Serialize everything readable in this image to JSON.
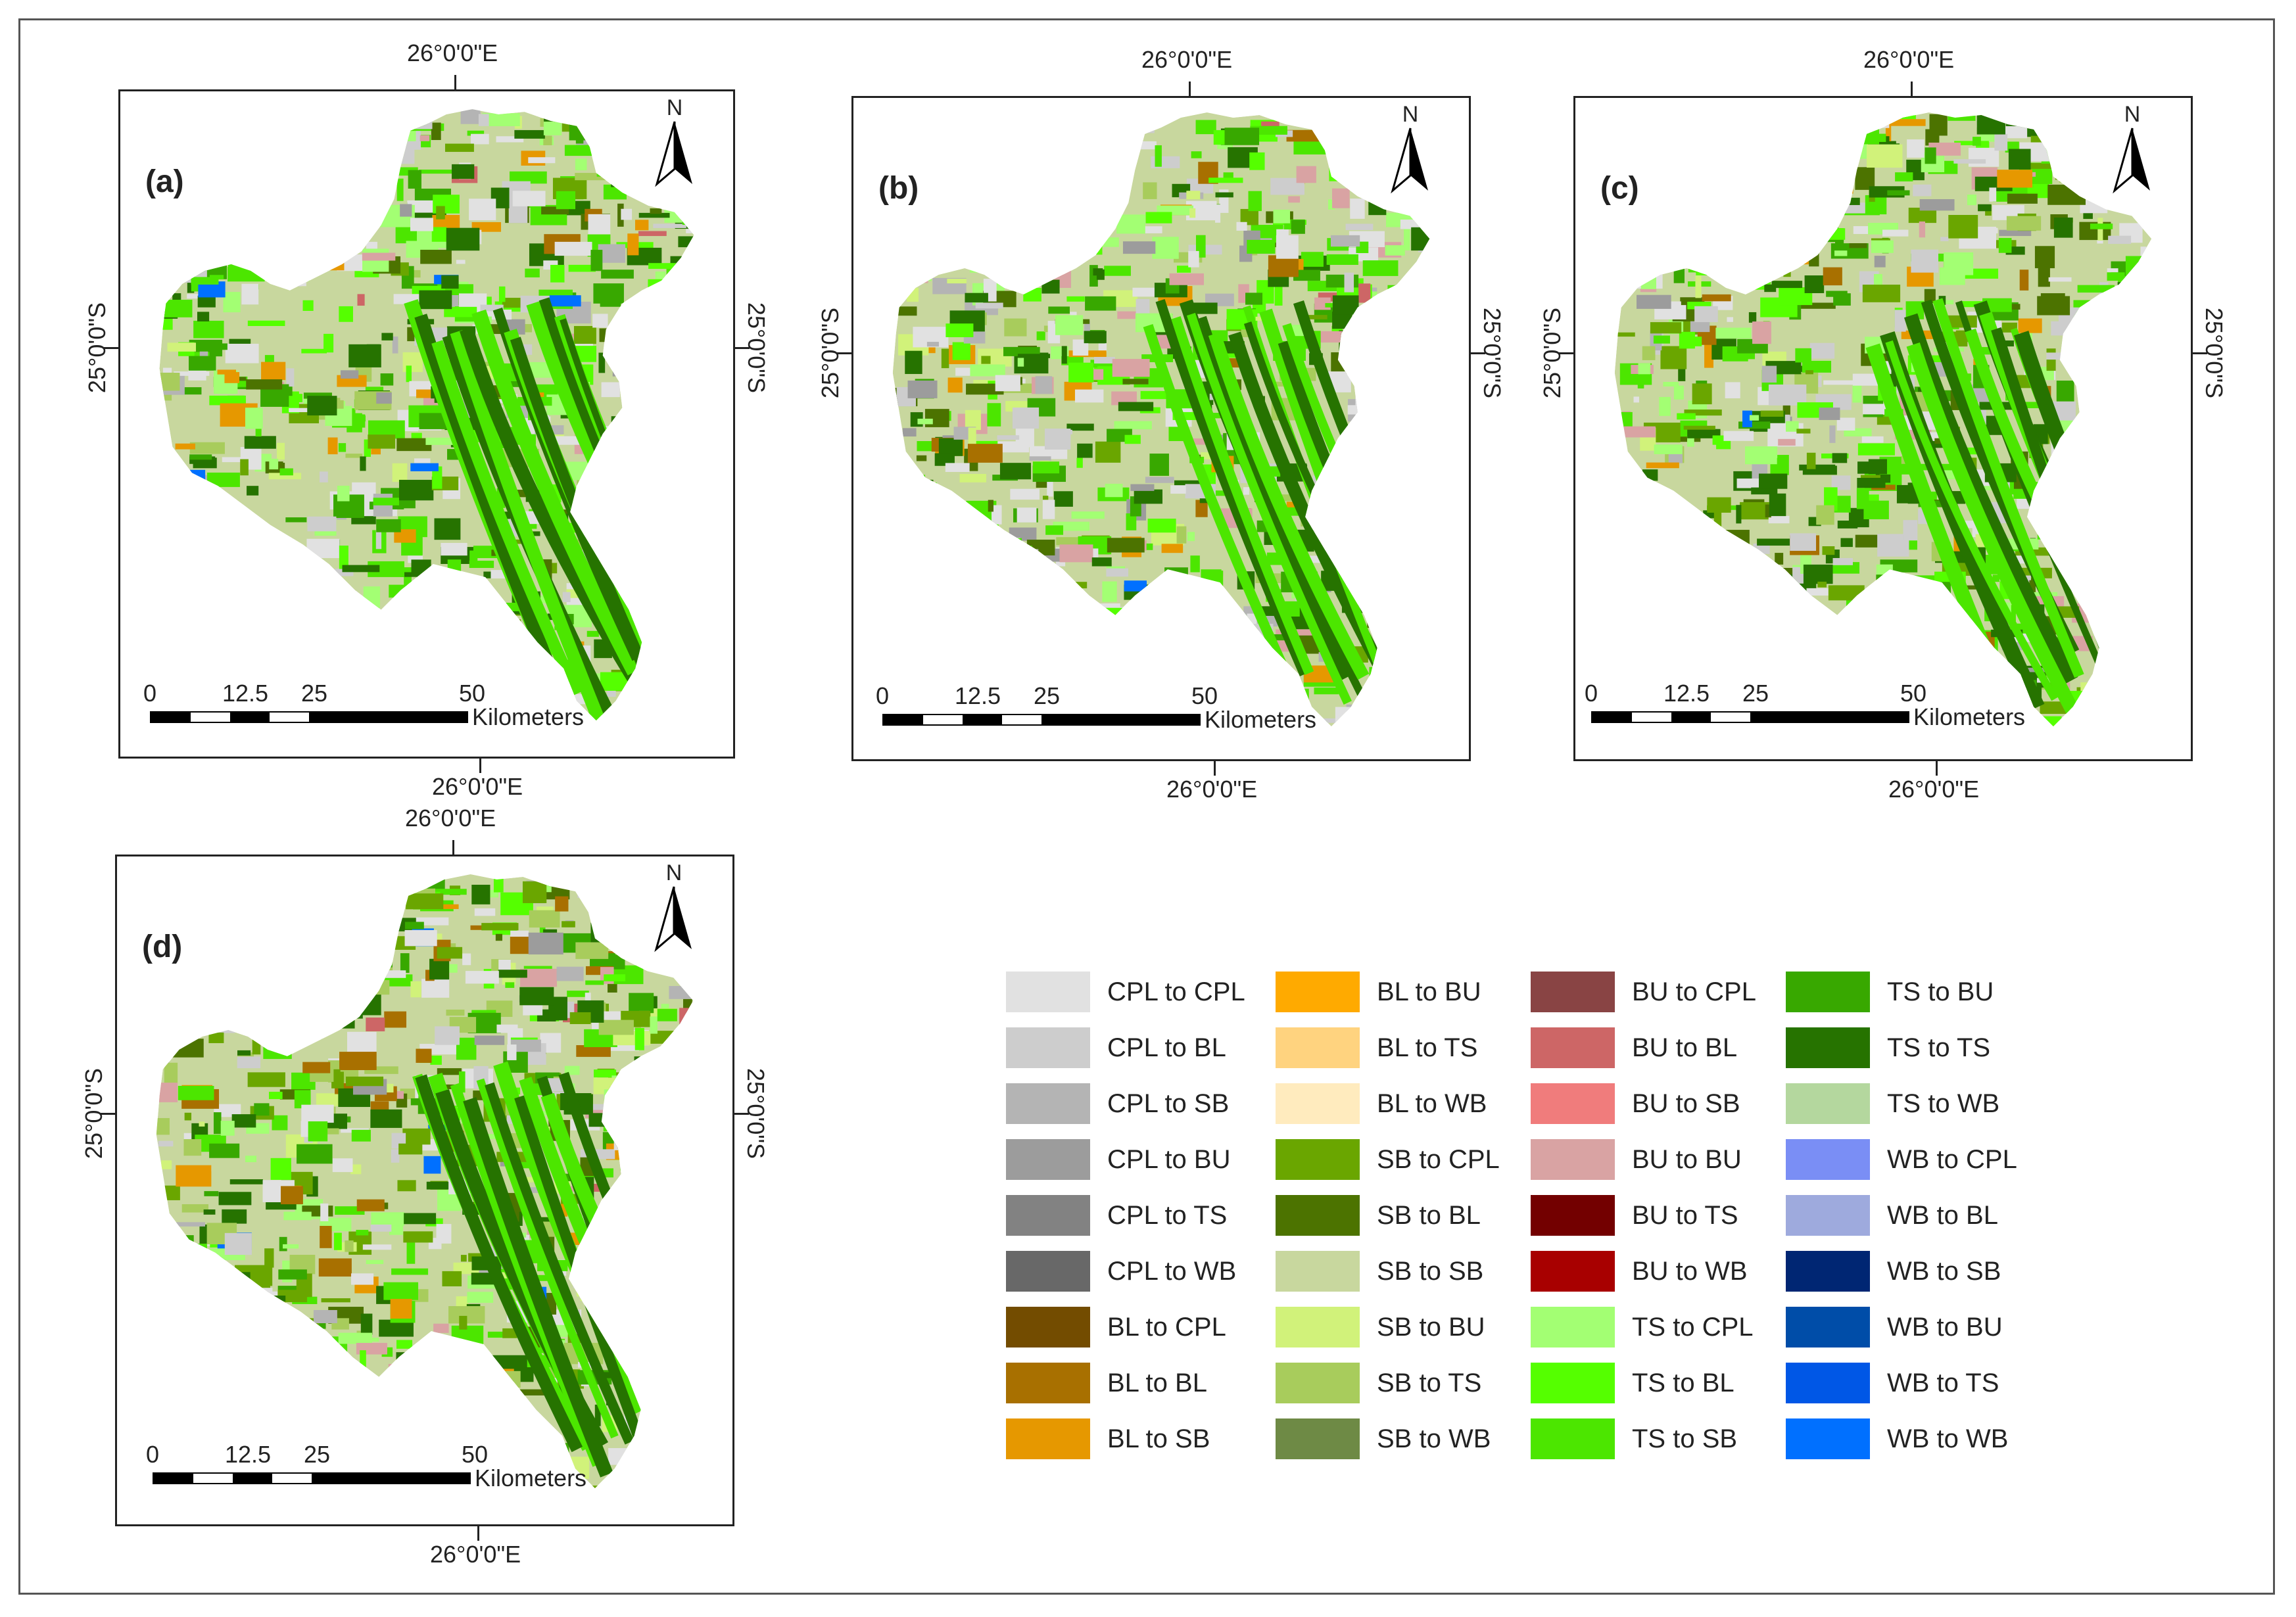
{
  "panels": [
    {
      "label": "(a)",
      "lon_top": "26°0'0\"E",
      "lon_bottom": "26°0'0\"E",
      "lat_left": "25°0'0\"S",
      "lat_right": "25°0'0\"S",
      "north": "N",
      "scale": {
        "ticks": [
          "0",
          "12.5",
          "25",
          "50"
        ],
        "unit": "Kilometers"
      }
    },
    {
      "label": "(b)",
      "lon_top": "26°0'0\"E",
      "lon_bottom": "26°0'0\"E",
      "lat_left": "25°0'0\"S",
      "lat_right": "25°0'0\"S",
      "north": "N",
      "scale": {
        "ticks": [
          "0",
          "12.5",
          "25",
          "50"
        ],
        "unit": "Kilometers"
      }
    },
    {
      "label": "(c)",
      "lon_top": "26°0'0\"E",
      "lon_bottom": "26°0'0\"E",
      "lat_left": "25°0'0\"S",
      "lat_right": "25°0'0\"S",
      "north": "N",
      "scale": {
        "ticks": [
          "0",
          "12.5",
          "25",
          "50"
        ],
        "unit": "Kilometers"
      }
    },
    {
      "label": "(d)",
      "lon_top": "26°0'0\"E",
      "lon_bottom": "26°0'0\"E",
      "lat_left": "25°0'0\"S",
      "lat_right": "25°0'0\"S",
      "north": "N",
      "scale": {
        "ticks": [
          "0",
          "12.5",
          "25",
          "50"
        ],
        "unit": "Kilometers"
      }
    }
  ],
  "legend": {
    "items": [
      {
        "label": "CPL to CPL",
        "color": "#e1e1e1"
      },
      {
        "label": "CPL to BL",
        "color": "#cdcdcd"
      },
      {
        "label": "CPL to SB",
        "color": "#b4b4b4"
      },
      {
        "label": "CPL to BU",
        "color": "#9c9c9c"
      },
      {
        "label": "CPL to TS",
        "color": "#828282"
      },
      {
        "label": "CPL to WB",
        "color": "#686868"
      },
      {
        "label": "BL to CPL",
        "color": "#734c00"
      },
      {
        "label": "BL to BL",
        "color": "#a87000"
      },
      {
        "label": "BL to SB",
        "color": "#e69800"
      },
      {
        "label": "BL to BU",
        "color": "#ffaa00"
      },
      {
        "label": "BL to TS",
        "color": "#ffd37f"
      },
      {
        "label": "BL to WB",
        "color": "#ffebbe"
      },
      {
        "label": "SB to CPL",
        "color": "#6aa600"
      },
      {
        "label": "SB to BL",
        "color": "#4c7300"
      },
      {
        "label": "SB to SB",
        "color": "#c8d79e"
      },
      {
        "label": "SB to BU",
        "color": "#d1f27a"
      },
      {
        "label": "SB to TS",
        "color": "#a8cc5c"
      },
      {
        "label": "SB to WB",
        "color": "#6e8a45"
      },
      {
        "label": "BU to CPL",
        "color": "#894444"
      },
      {
        "label": "BU to BL",
        "color": "#cd6666"
      },
      {
        "label": "BU to SB",
        "color": "#f07c7c"
      },
      {
        "label": "BU to BU",
        "color": "#d9a3a3"
      },
      {
        "label": "BU to TS",
        "color": "#730000"
      },
      {
        "label": "BU to WB",
        "color": "#a80000"
      },
      {
        "label": "TS to CPL",
        "color": "#a3ff73"
      },
      {
        "label": "TS to BL",
        "color": "#55ff00"
      },
      {
        "label": "TS to SB",
        "color": "#4ce600"
      },
      {
        "label": "TS to BU",
        "color": "#38a800"
      },
      {
        "label": "TS to TS",
        "color": "#267300"
      },
      {
        "label": "TS to WB",
        "color": "#b4d79e"
      },
      {
        "label": "WB to CPL",
        "color": "#7a8ef5"
      },
      {
        "label": "WB to BL",
        "color": "#9eaadd"
      },
      {
        "label": "WB to SB",
        "color": "#002673"
      },
      {
        "label": "WB to BU",
        "color": "#004da8"
      },
      {
        "label": "WB to TS",
        "color": "#0057e6"
      },
      {
        "label": "WB to WB",
        "color": "#0070ff"
      }
    ]
  }
}
